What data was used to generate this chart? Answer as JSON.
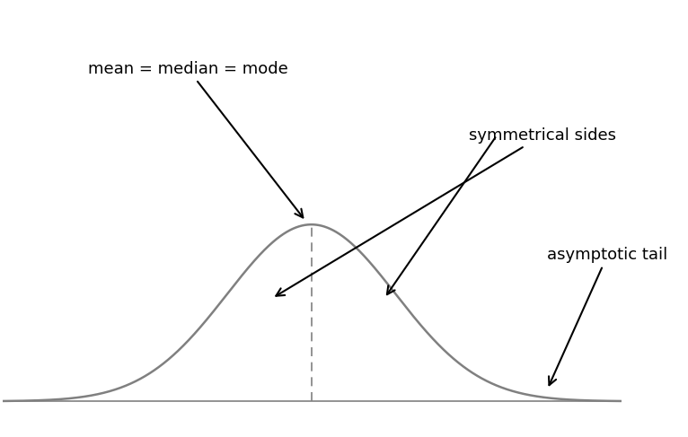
{
  "background_color": "#ffffff",
  "curve_color": "#808080",
  "dashed_line_color": "#808080",
  "baseline_color": "#808080",
  "arrow_color": "#000000",
  "text_color": "#000000",
  "mean_label": "mean = median = mode",
  "sym_label": "symmetrical sides",
  "asym_label": "asymptotic tail",
  "mean_fontsize": 13,
  "sym_fontsize": 13,
  "asym_fontsize": 13,
  "mu": 0.0,
  "sigma": 1.5,
  "xlim": [
    -5.5,
    6.0
  ],
  "ylim": [
    -0.05,
    0.6
  ]
}
